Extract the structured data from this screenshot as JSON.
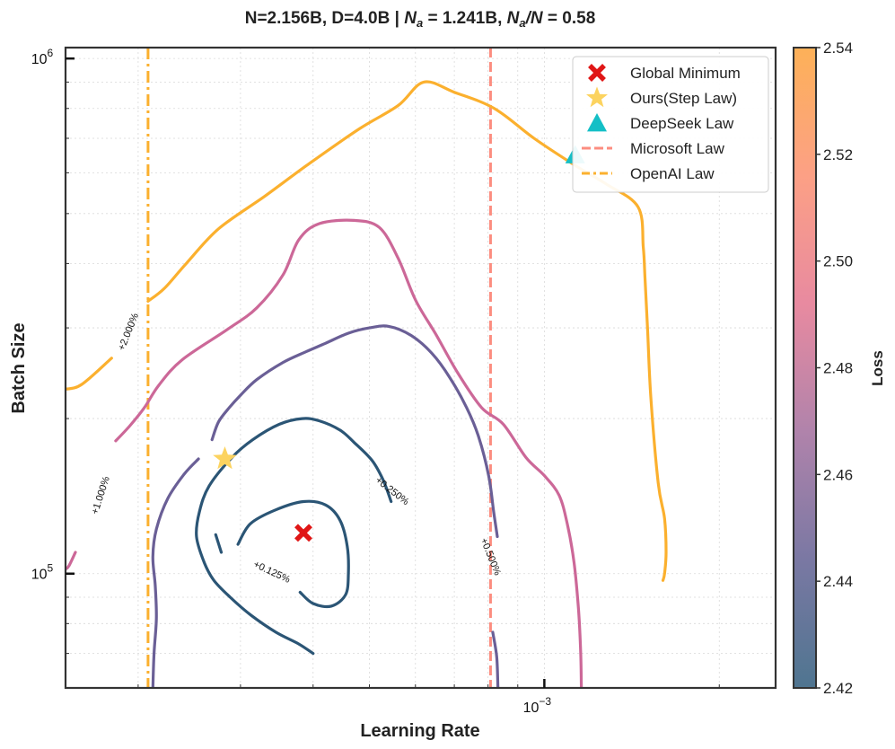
{
  "chart_data": {
    "type": "contour",
    "title_parts": {
      "prefix": "N=2.156B, D=4.0B | ",
      "na_sym": "N",
      "na_sub": "a",
      "na_val": " = 1.241B, ",
      "ratio_sym1": "N",
      "ratio_sub": "a",
      "ratio_sym2": "/N",
      "ratio_val": " = 0.58"
    },
    "xlabel": "Learning Rate",
    "ylabel": "Batch Size",
    "xscale": "log",
    "yscale": "log",
    "xlim": [
      0.00015,
      0.0025
    ],
    "ylim": [
      60000,
      1050000
    ],
    "x_ticks": [
      {
        "value": 0.001,
        "base": "10",
        "exp": "−3"
      }
    ],
    "y_ticks": [
      {
        "value": 100000,
        "base": "10",
        "exp": "5"
      },
      {
        "value": 1000000,
        "base": "10",
        "exp": "6"
      }
    ],
    "colorbar": {
      "label": "Loss",
      "min": 2.42,
      "max": 2.54,
      "ticks": [
        "2.42",
        "2.44",
        "2.46",
        "2.48",
        "2.50",
        "2.52",
        "2.54"
      ],
      "colors": [
        "#4f7590",
        "#7a78a3",
        "#b083ab",
        "#e88aa0",
        "#fca085",
        "#fdb158"
      ]
    },
    "contours": [
      {
        "label": "+0.125%",
        "color": "#2b5575",
        "segments": [
          [
            [
              0.000297,
              114000
            ],
            [
              0.000312,
              125000
            ],
            [
              0.000345,
              133000
            ],
            [
              0.000385,
              138000
            ],
            [
              0.00042,
              136000
            ],
            [
              0.000445,
              127000
            ],
            [
              0.000458,
              113000
            ],
            [
              0.00046,
              100000
            ],
            [
              0.000455,
              91000
            ],
            [
              0.00043,
              86500
            ],
            [
              0.0004,
              87500
            ],
            [
              0.00038,
              92000
            ]
          ],
          [
            [
              0.000278,
              110000
            ],
            [
              0.000272,
              119000
            ]
          ]
        ]
      },
      {
        "label": "+0.250%",
        "color": "#2b5575",
        "segments": [
          [
            [
              0.000545,
              138000
            ],
            [
              0.000528,
              152000
            ],
            [
              0.000505,
              166000
            ],
            [
              0.00047,
              180000
            ],
            [
              0.000445,
              190000
            ],
            [
              0.00041,
              198000
            ],
            [
              0.000383,
              200000
            ],
            [
              0.00035,
              195000
            ],
            [
              0.000315,
              182000
            ],
            [
              0.00029,
              168000
            ],
            [
              0.000265,
              148000
            ],
            [
              0.000255,
              132000
            ],
            [
              0.000252,
              118000
            ],
            [
              0.00026,
              105000
            ],
            [
              0.00027,
              97000
            ],
            [
              0.000288,
              90000
            ],
            [
              0.000313,
              83000
            ],
            [
              0.000345,
              77000
            ],
            [
              0.000378,
              73000
            ],
            [
              0.0004,
              70000
            ]
          ]
        ]
      },
      {
        "label": "+0.500%",
        "color": "#6a5f96",
        "segments": [
          [
            [
              0.00083,
              118000
            ],
            [
              0.000818,
              132000
            ],
            [
              0.000802,
              155000
            ],
            [
              0.00077,
              185000
            ],
            [
              0.000735,
              210000
            ],
            [
              0.000688,
              240000
            ],
            [
              0.00064,
              268000
            ],
            [
              0.00059,
              290000
            ],
            [
              0.00054,
              302000
            ],
            [
              0.0005,
              300000
            ],
            [
              0.00046,
              293000
            ],
            [
              0.00042,
              280000
            ],
            [
              0.00039,
              270000
            ],
            [
              0.000355,
              257000
            ],
            [
              0.00032,
              238000
            ],
            [
              0.0003,
              222000
            ],
            [
              0.000287,
              210000
            ],
            [
              0.000275,
              197000
            ],
            [
              0.000268,
              182000
            ]
          ],
          [
            [
              0.000254,
              167000
            ],
            [
              0.00024,
              156000
            ],
            [
              0.000225,
              140000
            ],
            [
              0.000215,
              122000
            ],
            [
              0.000212,
              108000
            ],
            [
              0.000214,
              95000
            ],
            [
              0.000215,
              82000
            ],
            [
              0.000213,
              70000
            ],
            [
              0.000212,
              60000
            ]
          ],
          [
            [
              0.000815,
              77000
            ],
            [
              0.000828,
              69000
            ],
            [
              0.000832,
              60000
            ]
          ]
        ]
      },
      {
        "label": "+1.000%",
        "color": "#cc6898",
        "segments": [
          [
            [
              0.00015,
              102000
            ],
            [
              0.000152,
              103500
            ],
            [
              0.000156,
              110000
            ]
          ],
          [
            [
              0.000183,
              181000
            ],
            [
              0.000193,
              193000
            ],
            [
              0.000205,
              210000
            ],
            [
              0.000217,
              232000
            ],
            [
              0.000238,
              260000
            ],
            [
              0.000285,
              298000
            ],
            [
              0.00032,
              328000
            ],
            [
              0.000355,
              380000
            ],
            [
              0.000378,
              445000
            ],
            [
              0.00041,
              478000
            ],
            [
              0.00047,
              485000
            ],
            [
              0.00052,
              470000
            ],
            [
              0.00056,
              410000
            ],
            [
              0.0006,
              340000
            ],
            [
              0.00065,
              292000
            ],
            [
              0.00071,
              245000
            ],
            [
              0.00078,
              210000
            ],
            [
              0.00085,
              195000
            ],
            [
              0.00093,
              168000
            ],
            [
              0.001,
              155000
            ],
            [
              0.00106,
              142000
            ],
            [
              0.001095,
              125000
            ],
            [
              0.001125,
              105000
            ],
            [
              0.001145,
              85000
            ],
            [
              0.001155,
              70000
            ],
            [
              0.001158,
              60000
            ]
          ]
        ]
      },
      {
        "label": "+2.000%",
        "color": "#fbb02e",
        "segments": [
          [
            [
              0.00015,
              228000
            ],
            [
              0.00016,
              233000
            ],
            [
              0.00018,
              262000
            ]
          ],
          [
            [
              0.000208,
              338000
            ],
            [
              0.000222,
              358000
            ],
            [
              0.000242,
              400000
            ],
            [
              0.000275,
              467000
            ],
            [
              0.00033,
              540000
            ],
            [
              0.00039,
              620000
            ],
            [
              0.00048,
              730000
            ],
            [
              0.00056,
              810000
            ],
            [
              0.00062,
              900000
            ],
            [
              0.0007,
              860000
            ],
            [
              0.00082,
              800000
            ],
            [
              0.00096,
              700000
            ],
            [
              0.00113,
              620000
            ],
            [
              0.00128,
              570000
            ],
            [
              0.00145,
              515000
            ],
            [
              0.00148,
              430000
            ],
            [
              0.00149,
              375000
            ],
            [
              0.001505,
              300000
            ],
            [
              0.001525,
              220000
            ],
            [
              0.00157,
              150000
            ],
            [
              0.00161,
              128000
            ],
            [
              0.00162,
              110000
            ],
            [
              0.00161,
              100000
            ],
            [
              0.0016,
              97000
            ]
          ]
        ]
      }
    ],
    "labels": [
      {
        "text": "+0.125%",
        "lr": 0.00034,
        "bs": 101000,
        "angle": 25
      },
      {
        "text": "+0.250%",
        "lr": 0.000548,
        "bs": 145000,
        "angle": 38
      },
      {
        "text": "+0.500%",
        "lr": 0.00081,
        "bs": 108000,
        "angle": 68
      },
      {
        "text": "+1.000%",
        "lr": 0.000172,
        "bs": 142000,
        "angle": -72
      },
      {
        "text": "+2.000%",
        "lr": 0.000192,
        "bs": 295000,
        "angle": -68
      }
    ],
    "markers": [
      {
        "name": "Global Minimum",
        "shape": "x",
        "color": "#e01616",
        "lr": 0.000385,
        "bs": 120000
      },
      {
        "name": "Ours(Step Law)",
        "shape": "star",
        "color": "#fcd35f",
        "lr": 0.000282,
        "bs": 167000
      },
      {
        "name": "DeepSeek Law",
        "shape": "triangle",
        "color": "#14bfc6",
        "lr": 0.00113,
        "bs": 650000
      }
    ],
    "vlines": [
      {
        "name": "Microsoft Law",
        "lr": 0.000808,
        "color": "#fc8d80",
        "style": "dashed"
      },
      {
        "name": "OpenAI Law",
        "lr": 0.000208,
        "color": "#fbb02e",
        "style": "dashdot"
      }
    ],
    "legend": {
      "position": "top-right",
      "entries": [
        {
          "label": "Global Minimum",
          "kind": "x",
          "color": "#e01616"
        },
        {
          "label": "Ours(Step Law)",
          "kind": "star",
          "color": "#fcd35f"
        },
        {
          "label": "DeepSeek Law",
          "kind": "triangle",
          "color": "#14bfc6"
        },
        {
          "label": "Microsoft Law",
          "kind": "dashed",
          "color": "#fc8d80"
        },
        {
          "label": "OpenAI Law",
          "kind": "dashdot",
          "color": "#fbb02e"
        }
      ]
    },
    "grid": true
  }
}
